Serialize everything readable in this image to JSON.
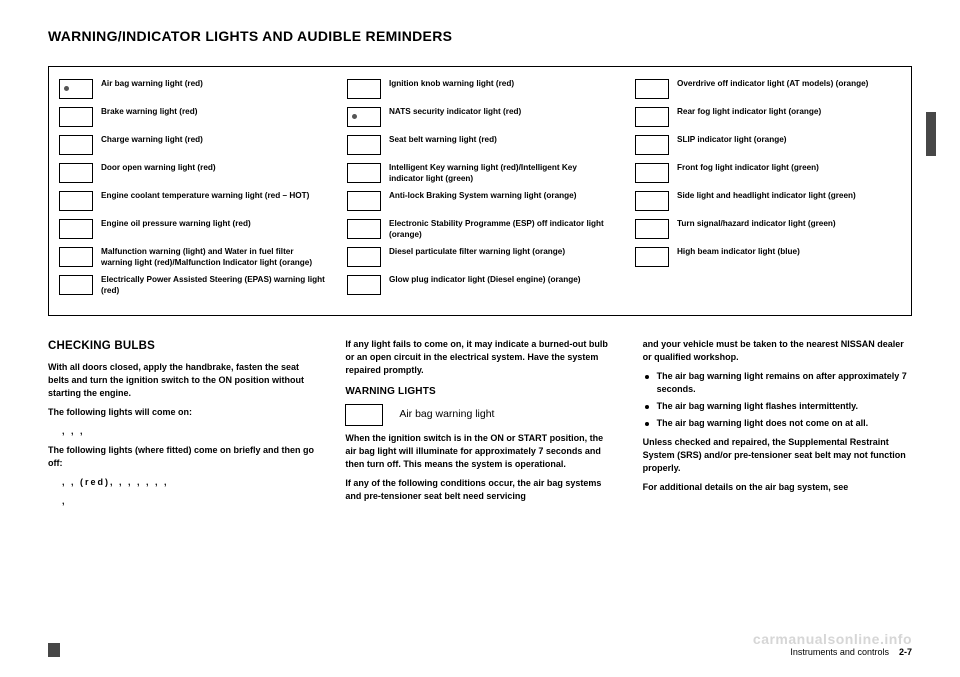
{
  "title": "WARNING/INDICATOR LIGHTS AND AUDIBLE REMINDERS",
  "table": {
    "col1": [
      "Air bag warning light (red)",
      "Brake warning light (red)",
      "Charge warning light (red)",
      "Door open warning light (red)",
      "Engine coolant temperature warning light (red – HOT)",
      "Engine oil pressure warning light (red)",
      "Malfunction warning (light) and Water in fuel filter warning light (red)/Malfunction Indicator light (orange)",
      "Electrically Power Assisted Steering (EPAS) warning light (red)"
    ],
    "col2": [
      "Ignition knob warning light (red)",
      "NATS security indicator light (red)",
      "Seat belt warning light (red)",
      "Intelligent Key warning light (red)/Intelligent Key indicator light (green)",
      "Anti-lock Braking System warning light (orange)",
      "Electronic Stability Programme (ESP) off indicator light (orange)",
      "Diesel particulate filter warning light (orange)",
      "Glow plug indicator light (Diesel engine) (orange)"
    ],
    "col3": [
      "Overdrive off indicator light (AT models) (orange)",
      "Rear fog light indicator light (orange)",
      "SLIP indicator light (orange)",
      "Front fog light indicator light (green)",
      "Side light and headlight indicator light (green)",
      "Turn signal/hazard indicator light (green)",
      "High beam indicator light (blue)"
    ]
  },
  "col_left": {
    "h2": "CHECKING BULBS",
    "p1": "With all doors closed, apply the handbrake, fasten the seat belts and turn the ignition switch to the ON position without starting the engine.",
    "p2": "The following lights will come on:",
    "dots1": ",     ,     ,",
    "p3": "The following lights (where fitted) come on briefly and then go off:",
    "dots2": ",     ,  (red),     ,     ,     ,     ,     ,     ,",
    "dots3": ","
  },
  "col_mid": {
    "p1": "If any light fails to come on, it may indicate a burned-out bulb or an open circuit in the electrical system. Have the system repaired promptly.",
    "h3": "WARNING LIGHTS",
    "iconlabel": "Air bag warning light",
    "p2": "When the ignition switch is in the ON or START position, the air bag light will illuminate for approximately 7 seconds and then turn off. This means the system is operational.",
    "p3": "If any of the following conditions occur, the air bag systems and pre-tensioner seat belt need servicing"
  },
  "col_right": {
    "p1": "and your vehicle must be taken to the nearest NISSAN dealer or qualified workshop.",
    "bullets": [
      "The air bag warning light remains on after approximately 7 seconds.",
      "The air bag warning light flashes intermittently.",
      "The air bag warning light does not come on at all."
    ],
    "p2": "Unless checked and repaired, the Supplemental Restraint System (SRS) and/or pre-tensioner seat belt may not function properly.",
    "p3": "For additional details on the air bag system, see"
  },
  "footer": {
    "section": "Instruments and controls",
    "page": "2-7"
  },
  "watermark": "carmanualsonline.info"
}
